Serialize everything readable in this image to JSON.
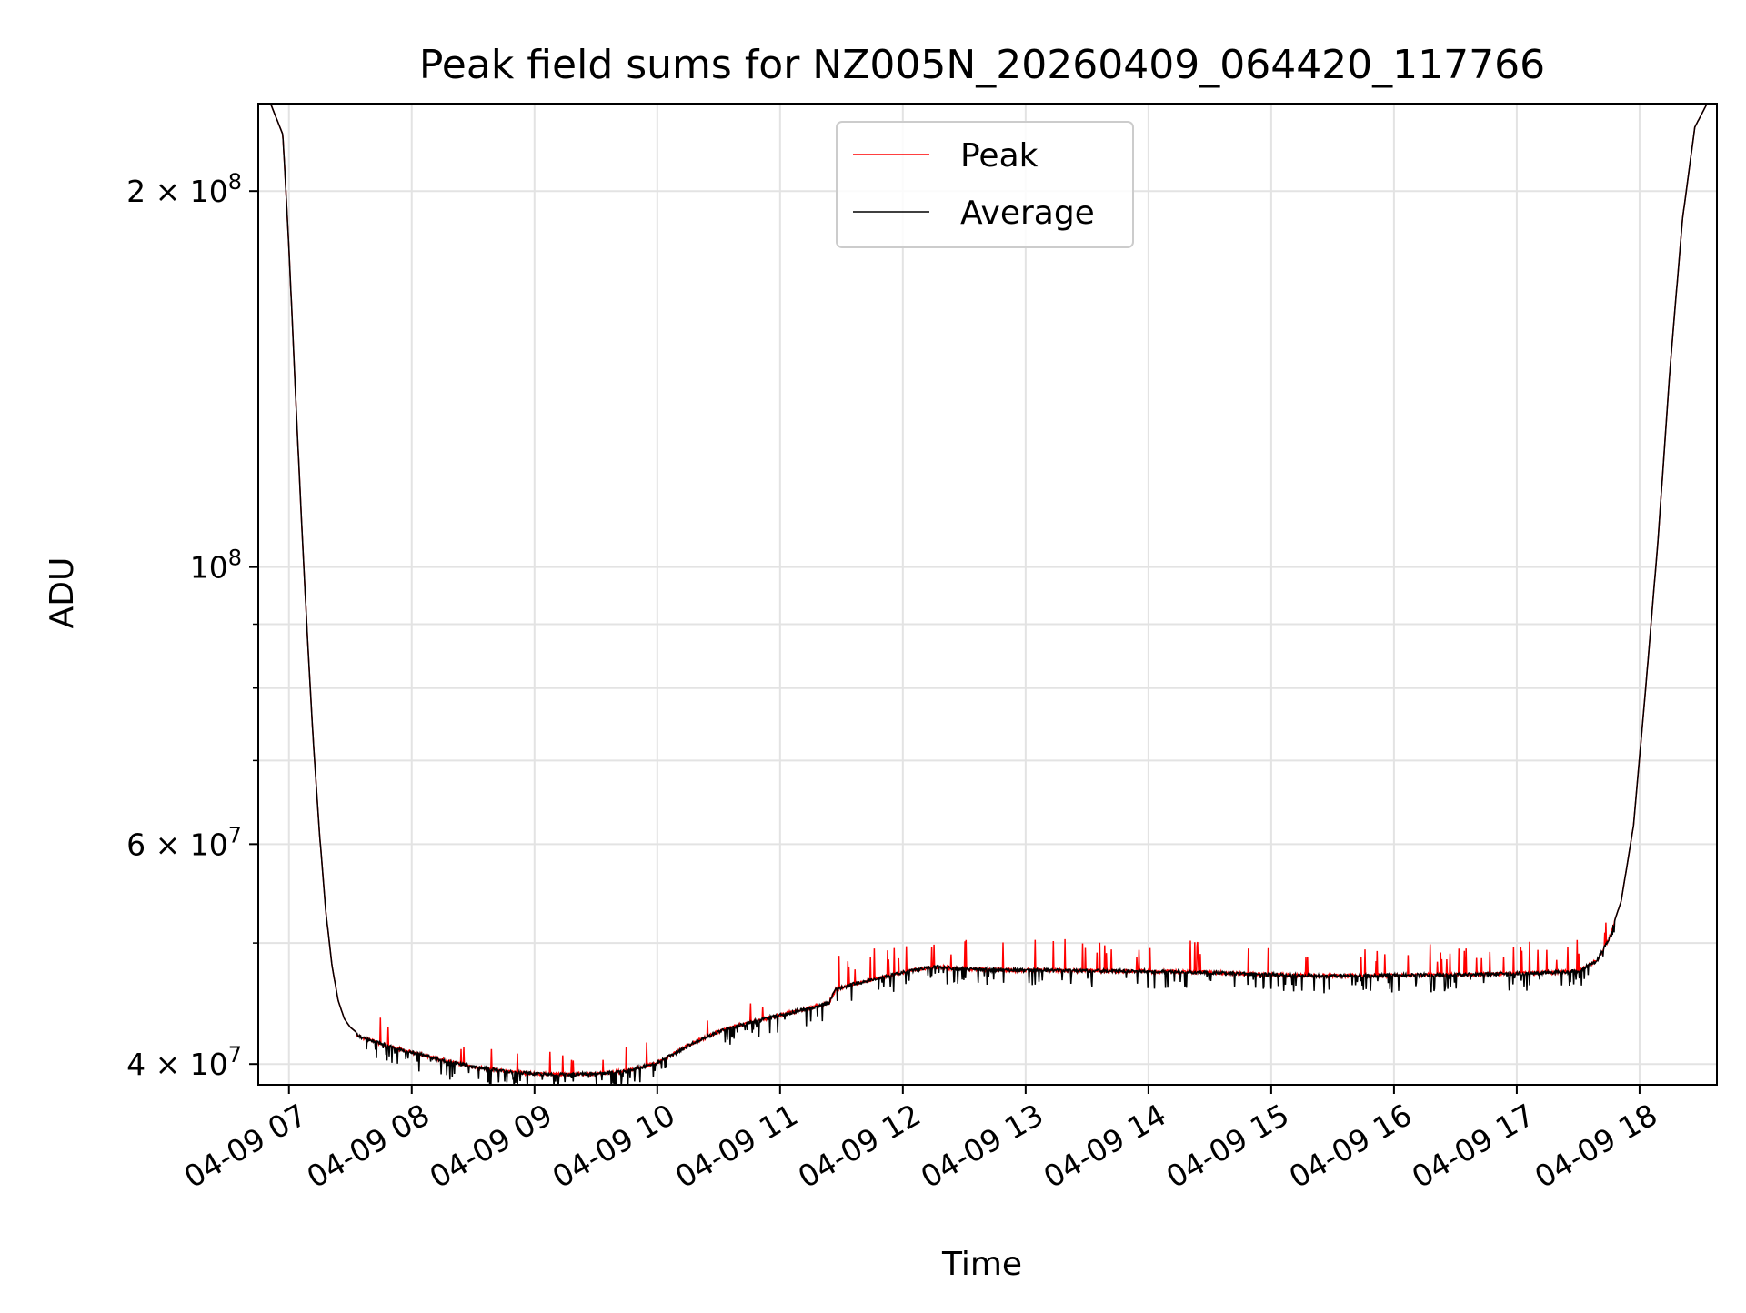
{
  "chart_data": {
    "type": "line",
    "title": "Peak field sums for NZ005N_20260409_064420_117766",
    "xlabel": "Time",
    "ylabel": "ADU",
    "yscale": "log",
    "ylim": [
      38500000,
      235000000
    ],
    "xlim_hours": [
      6.75,
      18.63
    ],
    "grid": true,
    "legend_position": "top-center",
    "x_tick_labels": [
      "04-09 07",
      "04-09 08",
      "04-09 09",
      "04-09 10",
      "04-09 11",
      "04-09 12",
      "04-09 13",
      "04-09 14",
      "04-09 15",
      "04-09 16",
      "04-09 17",
      "04-09 18"
    ],
    "y_tick_labels": [
      {
        "value": 40000000,
        "mantissa": "4",
        "exp": "7"
      },
      {
        "value": 60000000,
        "mantissa": "6",
        "exp": "7"
      },
      {
        "value": 100000000,
        "mantissa": "",
        "exp": "8"
      },
      {
        "value": 200000000,
        "mantissa": "2",
        "exp": "8"
      }
    ],
    "series": [
      {
        "name": "Peak",
        "color": "#ff0000",
        "x_hours": [
          6.75,
          6.85,
          6.95,
          7.0,
          7.05,
          7.1,
          7.15,
          7.2,
          7.25,
          7.3,
          7.35,
          7.4,
          7.45,
          7.5,
          7.55,
          7.6,
          7.7,
          7.8,
          8.0,
          8.25,
          8.5,
          8.75,
          9.0,
          9.25,
          9.5,
          9.75,
          10.0,
          10.25,
          10.5,
          10.75,
          11.0,
          11.25,
          11.4,
          11.45,
          11.6,
          11.8,
          12.0,
          12.25,
          12.5,
          12.75,
          13.0,
          13.5,
          14.0,
          14.5,
          15.0,
          15.5,
          16.0,
          16.5,
          17.0,
          17.3,
          17.5,
          17.65,
          17.75,
          17.85,
          17.95,
          18.05,
          18.15,
          18.25,
          18.35,
          18.45,
          18.55,
          18.63
        ],
        "adu": [
          235000000,
          235000000,
          222000000,
          180000000,
          140000000,
          110000000,
          88000000,
          72000000,
          61000000,
          53000000,
          48000000,
          45000000,
          43500000,
          42800000,
          42400000,
          42100000,
          41800000,
          41500000,
          41000000,
          40400000,
          39900000,
          39600000,
          39400000,
          39350000,
          39400000,
          39600000,
          40200000,
          41500000,
          42600000,
          43300000,
          43900000,
          44500000,
          44900000,
          46000000,
          46500000,
          47000000,
          47500000,
          48000000,
          47800000,
          47700000,
          47700000,
          47650000,
          47600000,
          47500000,
          47300000,
          47200000,
          47250000,
          47300000,
          47400000,
          47500000,
          47600000,
          48500000,
          50500000,
          54000000,
          62000000,
          80000000,
          105000000,
          145000000,
          190000000,
          225000000,
          235000000,
          235000000
        ]
      },
      {
        "name": "Average",
        "color": "#000000",
        "x_hours": [
          6.75,
          6.85,
          6.95,
          7.0,
          7.05,
          7.1,
          7.15,
          7.2,
          7.25,
          7.3,
          7.35,
          7.4,
          7.45,
          7.5,
          7.55,
          7.6,
          7.7,
          7.8,
          8.0,
          8.25,
          8.5,
          8.75,
          9.0,
          9.25,
          9.5,
          9.75,
          10.0,
          10.25,
          10.5,
          10.75,
          11.0,
          11.25,
          11.4,
          11.45,
          11.6,
          11.8,
          12.0,
          12.25,
          12.5,
          12.75,
          13.0,
          13.5,
          14.0,
          14.5,
          15.0,
          15.5,
          16.0,
          16.5,
          17.0,
          17.3,
          17.5,
          17.65,
          17.75,
          17.85,
          17.95,
          18.05,
          18.15,
          18.25,
          18.35,
          18.45,
          18.55,
          18.63
        ],
        "adu": [
          235000000,
          235000000,
          222000000,
          180000000,
          140000000,
          110000000,
          88000000,
          72000000,
          61000000,
          53000000,
          48000000,
          45000000,
          43500000,
          42800000,
          42400000,
          42100000,
          41800000,
          41500000,
          41000000,
          40400000,
          39900000,
          39600000,
          39400000,
          39350000,
          39400000,
          39600000,
          40200000,
          41500000,
          42600000,
          43300000,
          43900000,
          44500000,
          44900000,
          46000000,
          46500000,
          47000000,
          47500000,
          48000000,
          47800000,
          47700000,
          47700000,
          47650000,
          47600000,
          47500000,
          47300000,
          47200000,
          47250000,
          47300000,
          47400000,
          47500000,
          47600000,
          48500000,
          50500000,
          54000000,
          62000000,
          80000000,
          105000000,
          145000000,
          190000000,
          225000000,
          235000000,
          235000000
        ]
      }
    ]
  }
}
